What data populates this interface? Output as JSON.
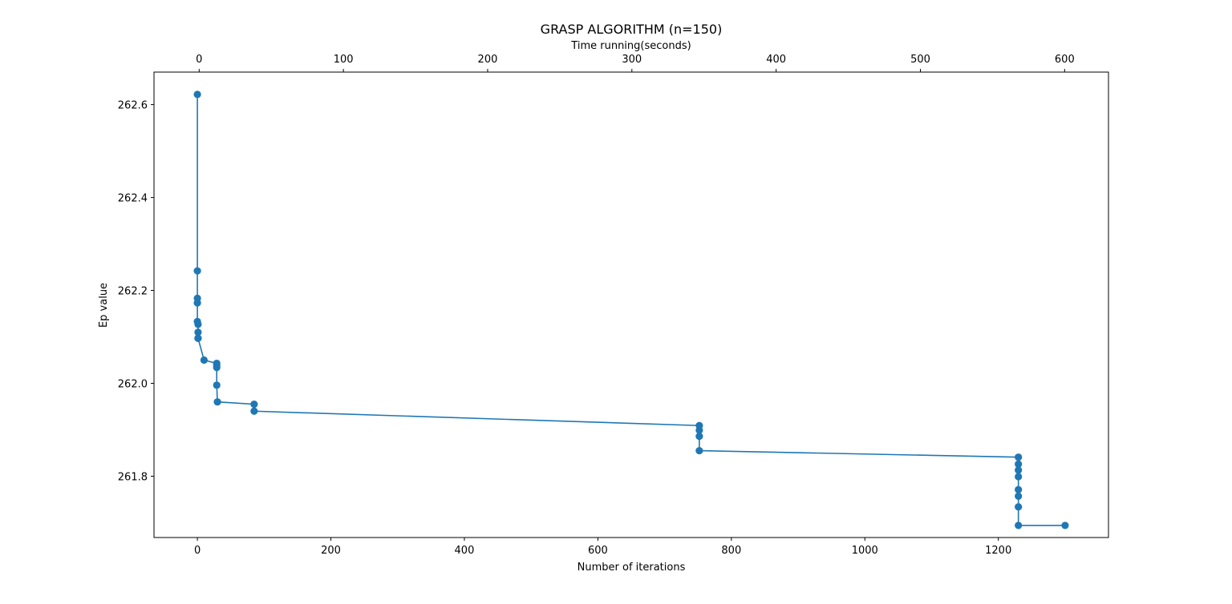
{
  "chart_data": {
    "type": "line",
    "title": "GRASP ALGORITHM (n=150)",
    "xlabel": "Number of iterations",
    "ylabel": "Ep value",
    "top_xlabel": "Time running(seconds)",
    "xlim": [
      -65,
      1365
    ],
    "ylim": [
      261.668,
      262.67
    ],
    "top_xlim": [
      -31.3,
      630.4
    ],
    "x_ticks": [
      0,
      200,
      400,
      600,
      800,
      1000,
      1200
    ],
    "y_ticks": [
      261.8,
      262.0,
      262.2,
      262.4,
      262.6
    ],
    "y_tick_labels": [
      "261.8",
      "262.0",
      "262.2",
      "262.4",
      "262.6"
    ],
    "top_x_ticks": [
      0,
      100,
      200,
      300,
      400,
      500,
      600
    ],
    "grid": false,
    "line_color": "#1f77b4",
    "marker": "circle",
    "series": [
      {
        "x": [
          0,
          0,
          0,
          0,
          0,
          1,
          1,
          1,
          1,
          10,
          29,
          29,
          29,
          29,
          30,
          85,
          85,
          752,
          752,
          752,
          752,
          1230,
          1230,
          1230,
          1230,
          1230,
          1230,
          1230,
          1230,
          1300
        ],
        "y": [
          262.622,
          262.242,
          262.183,
          262.173,
          262.133,
          262.127,
          262.11,
          262.097,
          262.097,
          262.05,
          262.043,
          262.039,
          262.034,
          261.996,
          261.96,
          261.955,
          261.94,
          261.909,
          261.899,
          261.886,
          261.855,
          261.841,
          261.826,
          261.813,
          261.799,
          261.771,
          261.757,
          261.734,
          261.694,
          261.694
        ]
      }
    ]
  }
}
